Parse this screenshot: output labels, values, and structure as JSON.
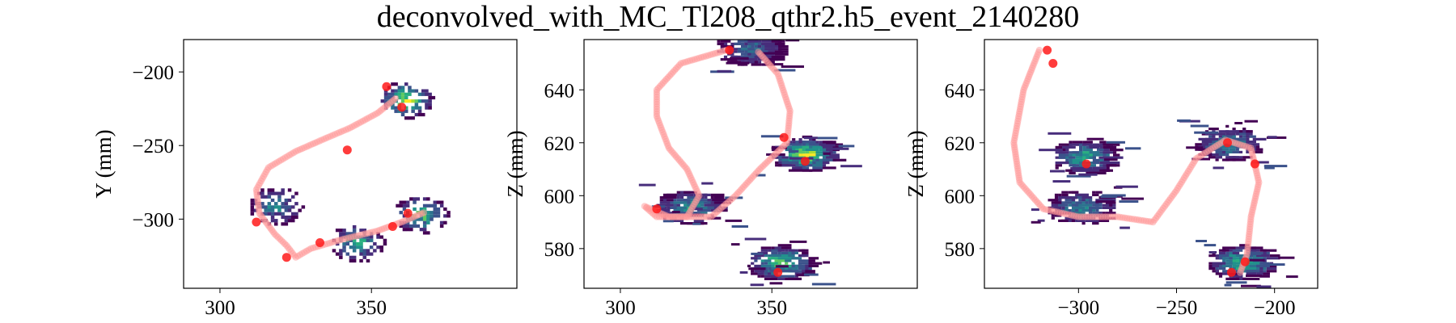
{
  "figure": {
    "title": "deconvolved_with_MC_Tl208_qthr2.h5_event_2140280"
  },
  "colors": {
    "track": "#ff9a9a",
    "points": "#ff1a1a",
    "viridis": [
      "#440154",
      "#472d7b",
      "#3b528b",
      "#2c728e",
      "#21918c",
      "#28ae80",
      "#5ec962",
      "#addc30",
      "#fde725"
    ]
  },
  "chart_data": [
    {
      "type": "heatmap",
      "panel": "xy",
      "title": "",
      "xlabel": "",
      "ylabel": "Y (mm)",
      "xlim": [
        288,
        398
      ],
      "ylim": [
        -347,
        -178
      ],
      "xticks": [
        "300",
        "350"
      ],
      "yticks": [
        "−200",
        "−250",
        "−300"
      ],
      "xtick_values": [
        300,
        350
      ],
      "ytick_values": [
        -200,
        -250,
        -300
      ],
      "clusters": [
        {
          "x": 361,
          "y": -218,
          "count": 1.0
        },
        {
          "x": 318,
          "y": -290,
          "count": 0.55
        },
        {
          "x": 345,
          "y": -315,
          "count": 0.7
        },
        {
          "x": 366,
          "y": -296,
          "count": 0.85
        }
      ],
      "track": [
        [
          358,
          -218
        ],
        [
          352,
          -228
        ],
        [
          343,
          -238
        ],
        [
          335,
          -245
        ],
        [
          325,
          -254
        ],
        [
          316,
          -265
        ],
        [
          312,
          -280
        ],
        [
          313,
          -296
        ],
        [
          318,
          -310
        ],
        [
          322,
          -318
        ],
        [
          325,
          -326
        ],
        [
          330,
          -320
        ],
        [
          340,
          -314
        ],
        [
          352,
          -308
        ],
        [
          360,
          -302
        ],
        [
          368,
          -295
        ]
      ],
      "points": [
        [
          355,
          -210
        ],
        [
          360,
          -224
        ],
        [
          342,
          -253
        ],
        [
          333,
          -316
        ],
        [
          322,
          -326
        ],
        [
          312,
          -302
        ],
        [
          362,
          -296
        ],
        [
          357,
          -305
        ]
      ]
    },
    {
      "type": "heatmap",
      "panel": "xz",
      "title": "",
      "xlabel": "",
      "ylabel": "Z (mm)",
      "xlim": [
        288,
        398
      ],
      "ylim": [
        565,
        659
      ],
      "xticks": [
        "300",
        "350"
      ],
      "yticks": [
        "640",
        "620",
        "600",
        "580"
      ],
      "xtick_values": [
        300,
        350
      ],
      "ytick_values": [
        640,
        620,
        600,
        580
      ],
      "clusters": [
        {
          "x": 342,
          "y": 656,
          "count": 0.45
        },
        {
          "x": 360,
          "y": 616,
          "count": 1.0
        },
        {
          "x": 322,
          "y": 596,
          "count": 0.65
        },
        {
          "x": 352,
          "y": 575,
          "count": 0.85
        }
      ],
      "track": [
        [
          335,
          655
        ],
        [
          320,
          650
        ],
        [
          312,
          640
        ],
        [
          312,
          630
        ],
        [
          316,
          618
        ],
        [
          322,
          610
        ],
        [
          326,
          600
        ],
        [
          322,
          592
        ],
        [
          312,
          592
        ],
        [
          308,
          596
        ],
        [
          316,
          592
        ],
        [
          330,
          592
        ],
        [
          338,
          600
        ],
        [
          346,
          610
        ],
        [
          355,
          620
        ],
        [
          356,
          632
        ],
        [
          352,
          646
        ],
        [
          345,
          655
        ]
      ],
      "points": [
        [
          336,
          655
        ],
        [
          354,
          622
        ],
        [
          361,
          613
        ],
        [
          312,
          595
        ],
        [
          352,
          571
        ]
      ]
    },
    {
      "type": "heatmap",
      "panel": "yz",
      "title": "",
      "xlabel": "",
      "ylabel": "Z (mm)",
      "xlim": [
        -348,
        -178
      ],
      "ylim": [
        565,
        659
      ],
      "xticks": [
        "−300",
        "−250",
        "−200"
      ],
      "yticks": [
        "640",
        "620",
        "600",
        "580"
      ],
      "xtick_values": [
        -300,
        -250,
        -200
      ],
      "ytick_values": [
        640,
        620,
        600,
        580
      ],
      "clusters": [
        {
          "x": -298,
          "y": 615,
          "count": 0.7
        },
        {
          "x": -300,
          "y": 596,
          "count": 0.55
        },
        {
          "x": -225,
          "y": 620,
          "count": 0.6
        },
        {
          "x": -218,
          "y": 575,
          "count": 0.85
        }
      ],
      "track": [
        [
          -320,
          655
        ],
        [
          -328,
          640
        ],
        [
          -333,
          620
        ],
        [
          -330,
          605
        ],
        [
          -318,
          595
        ],
        [
          -300,
          592
        ],
        [
          -280,
          592
        ],
        [
          -262,
          590
        ],
        [
          -250,
          602
        ],
        [
          -240,
          614
        ],
        [
          -225,
          621
        ],
        [
          -212,
          618
        ],
        [
          -208,
          605
        ],
        [
          -212,
          592
        ],
        [
          -214,
          578
        ],
        [
          -218,
          570
        ]
      ],
      "points": [
        [
          -316,
          655
        ],
        [
          -313,
          650
        ],
        [
          -296,
          612
        ],
        [
          -224,
          620
        ],
        [
          -210,
          612
        ],
        [
          -215,
          575
        ],
        [
          -222,
          571
        ]
      ]
    }
  ]
}
